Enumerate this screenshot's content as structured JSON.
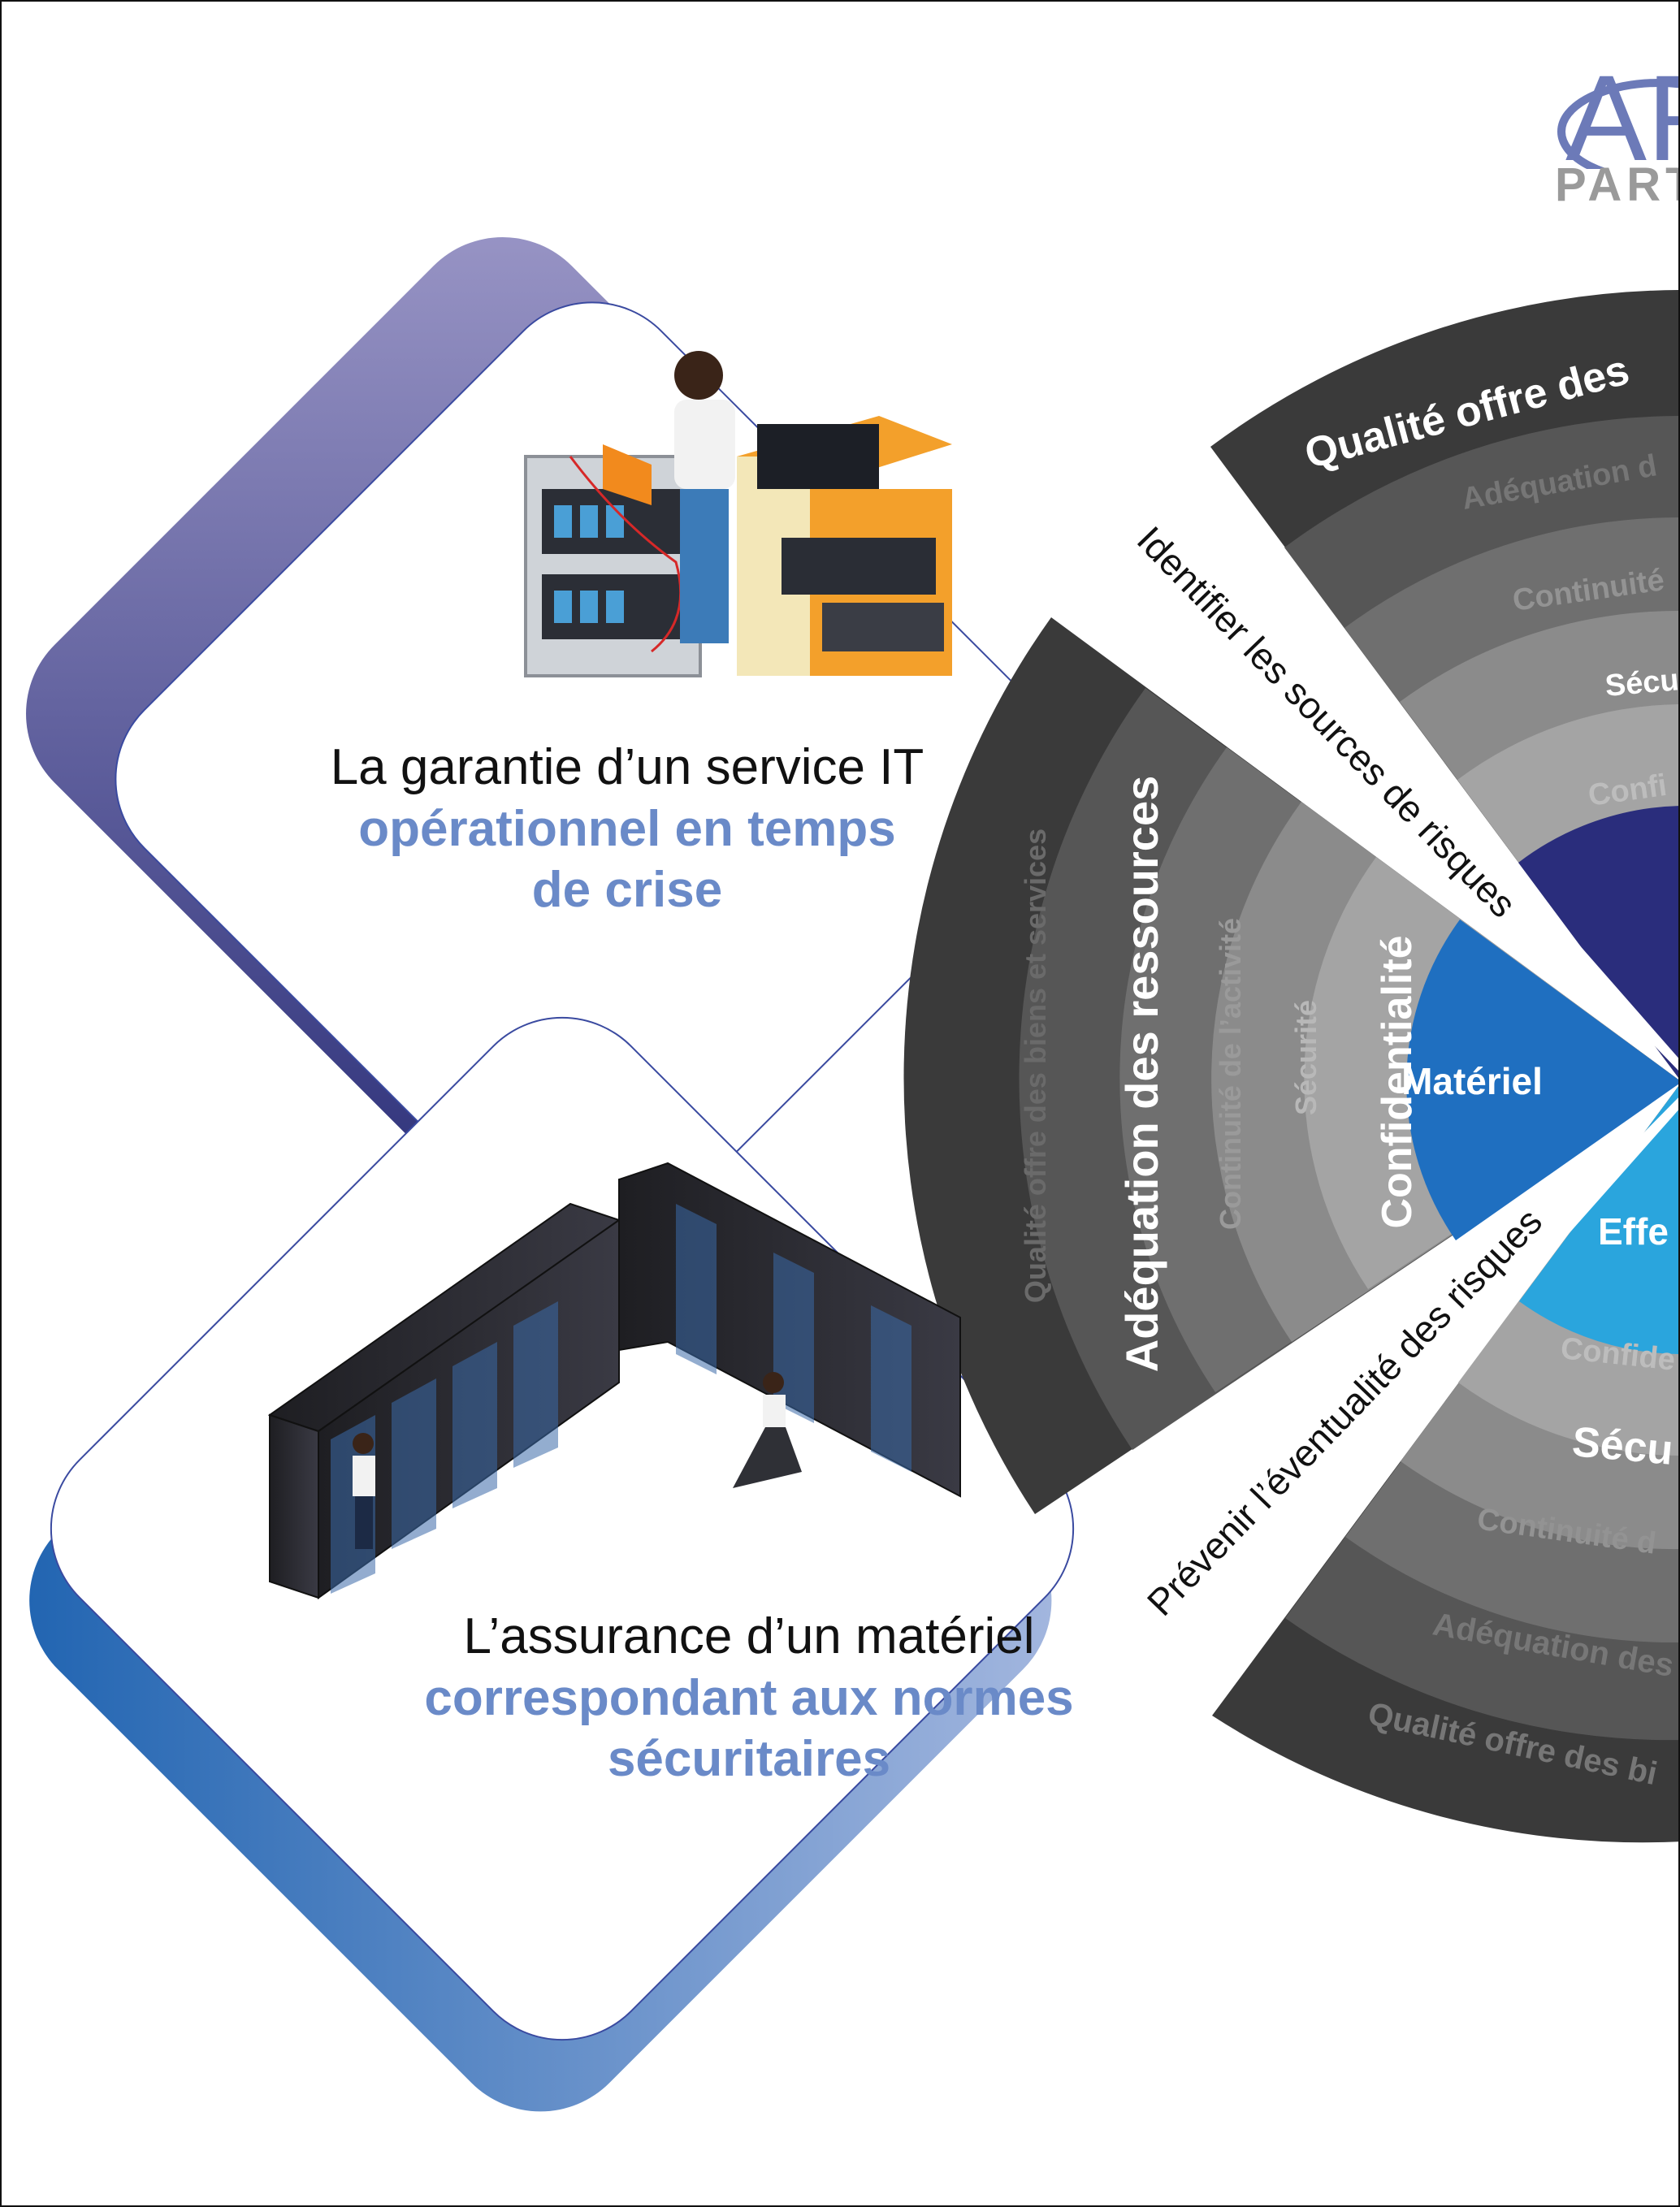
{
  "logo": {
    "letters": "AR",
    "subtext": "PART"
  },
  "cards": [
    {
      "lead": "La garantie d’un service IT",
      "accent_line1": "opérationnel en temps",
      "accent_line2": "de crise"
    },
    {
      "lead": "L’assurance d’un matériel",
      "accent_line1": "correspondant aux normes",
      "accent_line2": "sécuritaires"
    }
  ],
  "dividers": {
    "upper": "Identifier les sources de risques",
    "lower": "Prévenir l’éventualité des risques"
  },
  "left_sector": {
    "center": "Matériel",
    "rings": [
      "Confidentialité",
      "Sécurité",
      "Continuité de l’activité",
      "Adéquation des ressources",
      "Qualité offre des biens et services"
    ]
  },
  "top_sector": {
    "rings": [
      "Qualité offre des",
      "Adéquation d",
      "Continuité",
      "Sécu",
      "Confi"
    ]
  },
  "bottom_sector": {
    "center": "Effe",
    "rings": [
      "Confide",
      "Sécu",
      "Continuité d",
      "Adéquation des",
      "Qualité offre des bi"
    ]
  },
  "colors": {
    "card1_gradient": [
      "#2b2f78",
      "#9b97c7"
    ],
    "card2_gradient": [
      "#1d62b0",
      "#a7b9e0"
    ],
    "accent_text": "#6a8ac8",
    "center_dark_blue": "#2a2d7c",
    "center_mid_blue": "#1f6fc0",
    "center_light_blue": "#2aa5dd",
    "ring_greys": [
      "#3a3a3a",
      "#565656",
      "#6f6f6f",
      "#8b8b8b",
      "#a4a4a4"
    ]
  },
  "icons": [
    "it-technician-workstation-illustration",
    "server-room-illustration"
  ]
}
